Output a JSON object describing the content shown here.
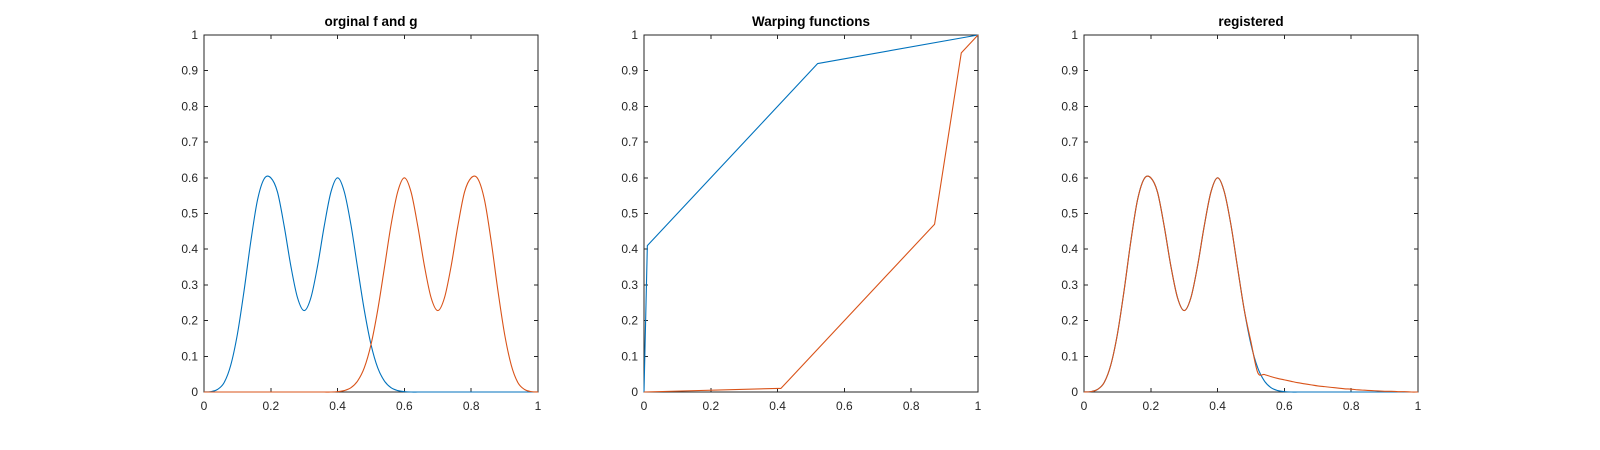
{
  "chart_data": [
    {
      "type": "line",
      "title": "orginal f and g",
      "xlim": [
        0,
        1
      ],
      "ylim": [
        0,
        1
      ],
      "xticks": [
        "0",
        "0.2",
        "0.4",
        "0.6",
        "0.8",
        "1"
      ],
      "yticks": [
        "0",
        "0.1",
        "0.2",
        "0.3",
        "0.4",
        "0.5",
        "0.6",
        "0.7",
        "0.8",
        "0.9",
        "1"
      ],
      "grid": false,
      "series": [
        {
          "color": "#0072BD",
          "x": [
            0,
            0.02,
            0.04,
            0.06,
            0.08,
            0.1,
            0.12,
            0.14,
            0.16,
            0.18,
            0.2,
            0.22,
            0.24,
            0.26,
            0.28,
            0.3,
            0.32,
            0.34,
            0.36,
            0.38,
            0.4,
            0.42,
            0.44,
            0.46,
            0.48,
            0.5,
            0.52,
            0.54,
            0.56,
            0.58,
            0.6,
            0.62,
            0.64,
            0.66,
            0.68,
            0.7,
            0.72,
            0.74,
            0.76,
            0.78,
            0.8,
            0.82,
            0.84,
            0.86,
            0.88,
            0.9,
            0.92,
            0.94,
            0.96,
            0.98,
            1
          ],
          "y": [
            0.0,
            0.001,
            0.007,
            0.026,
            0.075,
            0.162,
            0.284,
            0.421,
            0.537,
            0.597,
            0.6,
            0.56,
            0.465,
            0.353,
            0.264,
            0.228,
            0.264,
            0.353,
            0.465,
            0.56,
            0.6,
            0.561,
            0.468,
            0.347,
            0.229,
            0.133,
            0.068,
            0.031,
            0.012,
            0.004,
            0.001,
            0.0,
            0.0,
            0.0,
            0.0,
            0.0,
            0.0,
            0.0,
            0.0,
            0.0,
            0.0,
            0.0,
            0.0,
            0.0,
            0.0,
            0.0,
            0.0,
            0.0,
            0.0,
            0.0,
            0.0
          ]
        },
        {
          "color": "#D95319",
          "x": [
            0,
            0.02,
            0.04,
            0.06,
            0.08,
            0.1,
            0.12,
            0.14,
            0.16,
            0.18,
            0.2,
            0.22,
            0.24,
            0.26,
            0.28,
            0.3,
            0.32,
            0.34,
            0.36,
            0.38,
            0.4,
            0.42,
            0.44,
            0.46,
            0.48,
            0.5,
            0.52,
            0.54,
            0.56,
            0.58,
            0.6,
            0.62,
            0.64,
            0.66,
            0.68,
            0.7,
            0.72,
            0.74,
            0.76,
            0.78,
            0.8,
            0.82,
            0.84,
            0.86,
            0.88,
            0.9,
            0.92,
            0.94,
            0.96,
            0.98,
            1
          ],
          "y": [
            0.0,
            0.0,
            0.0,
            0.0,
            0.0,
            0.0,
            0.0,
            0.0,
            0.0,
            0.0,
            0.0,
            0.0,
            0.0,
            0.0,
            0.0,
            0.0,
            0.0,
            0.0,
            0.0,
            0.0,
            0.001,
            0.004,
            0.012,
            0.031,
            0.068,
            0.133,
            0.229,
            0.347,
            0.468,
            0.561,
            0.6,
            0.56,
            0.465,
            0.353,
            0.264,
            0.228,
            0.264,
            0.353,
            0.465,
            0.56,
            0.6,
            0.597,
            0.537,
            0.421,
            0.284,
            0.162,
            0.075,
            0.026,
            0.007,
            0.001,
            0.0
          ]
        }
      ]
    },
    {
      "type": "line",
      "title": "Warping functions",
      "xlim": [
        0,
        1
      ],
      "ylim": [
        0,
        1
      ],
      "xticks": [
        "0",
        "0.2",
        "0.4",
        "0.6",
        "0.8",
        "1"
      ],
      "yticks": [
        "0",
        "0.1",
        "0.2",
        "0.3",
        "0.4",
        "0.5",
        "0.6",
        "0.7",
        "0.8",
        "0.9",
        "1"
      ],
      "grid": false,
      "series": [
        {
          "color": "#0072BD",
          "x": [
            0,
            0.01,
            0.52,
            1
          ],
          "y": [
            0,
            0.41,
            0.92,
            1
          ]
        },
        {
          "color": "#D95319",
          "x": [
            0,
            0.4,
            0.41,
            0.87,
            0.95,
            1
          ],
          "y": [
            0,
            0.01,
            0.01,
            0.47,
            0.95,
            1
          ]
        }
      ]
    },
    {
      "type": "line",
      "title": "registered",
      "xlim": [
        0,
        1
      ],
      "ylim": [
        0,
        1
      ],
      "xticks": [
        "0",
        "0.2",
        "0.4",
        "0.6",
        "0.8",
        "1"
      ],
      "yticks": [
        "0",
        "0.1",
        "0.2",
        "0.3",
        "0.4",
        "0.5",
        "0.6",
        "0.7",
        "0.8",
        "0.9",
        "1"
      ],
      "grid": false,
      "series": [
        {
          "color": "#0072BD",
          "x": [
            0,
            0.02,
            0.04,
            0.06,
            0.08,
            0.1,
            0.12,
            0.14,
            0.16,
            0.18,
            0.2,
            0.22,
            0.24,
            0.26,
            0.28,
            0.3,
            0.32,
            0.34,
            0.36,
            0.38,
            0.4,
            0.42,
            0.44,
            0.46,
            0.48,
            0.5,
            0.52,
            0.54,
            0.56,
            0.58,
            0.6,
            0.62,
            0.64,
            0.66,
            0.68,
            0.7,
            0.72,
            0.74,
            0.76,
            0.78,
            0.8,
            0.82,
            0.84,
            0.86,
            0.88,
            0.9,
            0.92,
            0.94,
            0.96,
            0.98,
            1
          ],
          "y": [
            0.0,
            0.001,
            0.007,
            0.026,
            0.075,
            0.162,
            0.284,
            0.421,
            0.537,
            0.597,
            0.6,
            0.56,
            0.465,
            0.353,
            0.264,
            0.228,
            0.264,
            0.353,
            0.465,
            0.56,
            0.6,
            0.561,
            0.468,
            0.347,
            0.229,
            0.133,
            0.068,
            0.031,
            0.012,
            0.004,
            0.001,
            0.0,
            0.0,
            0.0,
            0.0,
            0.0,
            0.0,
            0.0,
            0.0,
            0.0,
            0.0,
            0.0,
            0.0,
            0.0,
            0.0,
            0.0,
            0.0,
            0.0,
            0.0,
            0.0,
            0.0
          ]
        },
        {
          "color": "#D95319",
          "x": [
            0,
            0.02,
            0.04,
            0.06,
            0.08,
            0.1,
            0.12,
            0.14,
            0.16,
            0.18,
            0.2,
            0.22,
            0.24,
            0.26,
            0.28,
            0.3,
            0.32,
            0.34,
            0.36,
            0.38,
            0.4,
            0.42,
            0.44,
            0.46,
            0.48,
            0.5,
            0.52,
            0.54,
            0.56,
            0.58,
            0.6,
            0.62,
            0.64,
            0.66,
            0.68,
            0.7,
            0.72,
            0.74,
            0.76,
            0.78,
            0.8,
            0.82,
            0.84,
            0.86,
            0.88,
            0.9,
            0.92,
            0.94,
            0.96,
            0.98,
            1
          ],
          "y": [
            0.0,
            0.001,
            0.007,
            0.026,
            0.075,
            0.162,
            0.284,
            0.421,
            0.537,
            0.597,
            0.6,
            0.56,
            0.465,
            0.353,
            0.264,
            0.228,
            0.264,
            0.353,
            0.465,
            0.56,
            0.6,
            0.561,
            0.468,
            0.347,
            0.229,
            0.14,
            0.055,
            0.049,
            0.043,
            0.038,
            0.034,
            0.03,
            0.026,
            0.023,
            0.02,
            0.017,
            0.015,
            0.013,
            0.011,
            0.009,
            0.008,
            0.006,
            0.005,
            0.004,
            0.003,
            0.002,
            0.002,
            0.001,
            0.001,
            0.0,
            0.0
          ]
        }
      ]
    }
  ]
}
